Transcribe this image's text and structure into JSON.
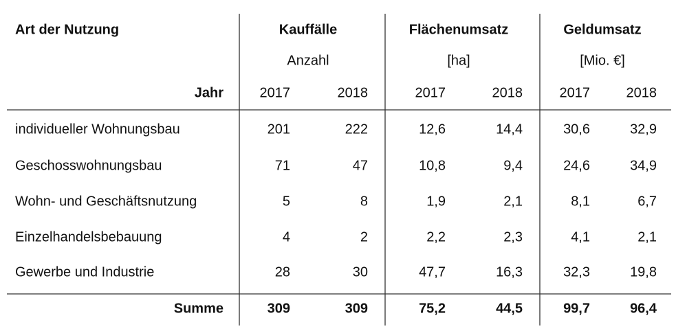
{
  "table": {
    "header": {
      "label": "Art der Nutzung",
      "year_label": "Jahr",
      "groups": [
        {
          "title": "Kauffälle",
          "unit": "Anzahl",
          "years": [
            "2017",
            "2018"
          ]
        },
        {
          "title": "Flächenumsatz",
          "unit": "[ha]",
          "years": [
            "2017",
            "2018"
          ]
        },
        {
          "title": "Geldumsatz",
          "unit": "[Mio. €]",
          "years": [
            "2017",
            "2018"
          ]
        }
      ]
    },
    "rows": [
      [
        "individueller Wohnungsbau",
        "201",
        "222",
        "12,6",
        "14,4",
        "30,6",
        "32,9"
      ],
      [
        "Geschosswohnungsbau",
        "71",
        "47",
        "10,8",
        "9,4",
        "24,6",
        "34,9"
      ],
      [
        "Wohn- und Geschäftsnutzung",
        "5",
        "8",
        "1,9",
        "2,1",
        "8,1",
        "6,7"
      ],
      [
        "Einzelhandelsbebauung",
        "4",
        "2",
        "2,2",
        "2,3",
        "4,1",
        "2,1"
      ],
      [
        "Gewerbe und Industrie",
        "28",
        "30",
        "47,7",
        "16,3",
        "32,3",
        "19,8"
      ]
    ],
    "total": [
      "Summe",
      "309",
      "309",
      "75,2",
      "44,5",
      "99,7",
      "96,4"
    ]
  }
}
